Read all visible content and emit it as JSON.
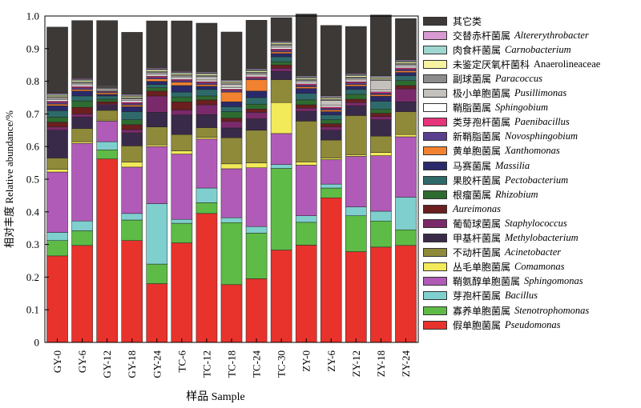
{
  "chart_data": {
    "type": "bar",
    "stacked": true,
    "xlabel": "样品 Sample",
    "ylabel": "相对丰度 Relative abundance/%",
    "ylim": [
      0,
      1.0
    ],
    "yticks": [
      "0",
      "0.1",
      "0.2",
      "0.3",
      "0.4",
      "0.5",
      "0.6",
      "0.7",
      "0.8",
      "0.9",
      "1.0"
    ],
    "categories": [
      "GY-0",
      "GY-6",
      "GY-12",
      "GY-18",
      "GY-24",
      "TC-6",
      "TC-12",
      "TC-18",
      "TC-24",
      "TC-30",
      "ZY-0",
      "ZY-6",
      "ZY-12",
      "ZY-18",
      "ZY-24"
    ],
    "legend_position": "right",
    "series": [
      {
        "name": "假单胞菌属",
        "latin": "Pseudomonas",
        "italic": true,
        "color": "#e8322c",
        "values": [
          0.265,
          0.297,
          0.562,
          0.312,
          0.18,
          0.305,
          0.395,
          0.177,
          0.195,
          0.283,
          0.298,
          0.443,
          0.278,
          0.292,
          0.297
        ]
      },
      {
        "name": "寡养单胞菌属",
        "latin": "Stenotrophomonas",
        "italic": true,
        "color": "#5dbb46",
        "values": [
          0.047,
          0.045,
          0.028,
          0.063,
          0.06,
          0.06,
          0.033,
          0.19,
          0.14,
          0.25,
          0.07,
          0.03,
          0.11,
          0.08,
          0.048
        ]
      },
      {
        "name": "芽孢杆菌属",
        "latin": "Bacillus",
        "italic": true,
        "color": "#7fcfcf",
        "values": [
          0.025,
          0.03,
          0.025,
          0.02,
          0.185,
          0.012,
          0.045,
          0.015,
          0.02,
          0.012,
          0.02,
          0.012,
          0.027,
          0.03,
          0.1
        ]
      },
      {
        "name": "鞘氨醇单胞菌属",
        "latin": "Sphingomonas",
        "italic": true,
        "color": "#b15bb8",
        "values": [
          0.185,
          0.238,
          0.063,
          0.142,
          0.175,
          0.2,
          0.15,
          0.15,
          0.18,
          0.095,
          0.155,
          0.075,
          0.155,
          0.17,
          0.185
        ]
      },
      {
        "name": "丛毛单胞菌属",
        "latin": "Comamonas",
        "italic": true,
        "color": "#f3ea5a",
        "values": [
          0.008,
          0.005,
          0.003,
          0.015,
          0.005,
          0.01,
          0.005,
          0.015,
          0.015,
          0.095,
          0.01,
          0.005,
          0.005,
          0.01,
          0.007
        ]
      },
      {
        "name": "不动杆菌属",
        "latin": "Acinetobacter",
        "italic": true,
        "color": "#8f8a3a",
        "values": [
          0.035,
          0.04,
          0.03,
          0.05,
          0.055,
          0.05,
          0.03,
          0.08,
          0.1,
          0.07,
          0.125,
          0.055,
          0.12,
          0.05,
          0.07
        ]
      },
      {
        "name": "甲基杆菌属",
        "latin": "Methylobacterium",
        "italic": true,
        "color": "#3a2a4a",
        "values": [
          0.085,
          0.035,
          0.015,
          0.04,
          0.045,
          0.06,
          0.04,
          0.03,
          0.035,
          0.025,
          0.03,
          0.03,
          0.03,
          0.05,
          0.03
        ]
      },
      {
        "name": "葡萄球菌属",
        "latin": "Staphylococcus",
        "italic": true,
        "color": "#7a2a6a",
        "values": [
          0.01,
          0.01,
          0.004,
          0.01,
          0.05,
          0.015,
          0.03,
          0.02,
          0.02,
          0.01,
          0.01,
          0.01,
          0.01,
          0.01,
          0.04
        ]
      },
      {
        "name": "",
        "latin": "Aureimonas",
        "italic": true,
        "color": "#6b1f1f",
        "values": [
          0.015,
          0.02,
          0.007,
          0.015,
          0.015,
          0.025,
          0.015,
          0.01,
          0.01,
          0.01,
          0.01,
          0.01,
          0.01,
          0.01,
          0.01
        ]
      },
      {
        "name": "根瘤菌属",
        "latin": "Rhizobium",
        "italic": true,
        "color": "#2e6b30",
        "values": [
          0.015,
          0.02,
          0.008,
          0.015,
          0.01,
          0.015,
          0.012,
          0.02,
          0.015,
          0.01,
          0.015,
          0.012,
          0.015,
          0.012,
          0.015
        ]
      },
      {
        "name": "果胶杆菌属",
        "latin": "Pectobacterium",
        "italic": true,
        "color": "#2e6a6a",
        "values": [
          0.02,
          0.015,
          0.01,
          0.025,
          0.01,
          0.015,
          0.02,
          0.015,
          0.02,
          0.015,
          0.02,
          0.015,
          0.015,
          0.025,
          0.015
        ]
      },
      {
        "name": "马赛菌属",
        "latin": "Massilia",
        "italic": true,
        "color": "#2a2a6a",
        "values": [
          0.015,
          0.015,
          0.005,
          0.015,
          0.01,
          0.02,
          0.01,
          0.015,
          0.02,
          0.01,
          0.015,
          0.01,
          0.01,
          0.015,
          0.01
        ]
      },
      {
        "name": "黄单胞菌属",
        "latin": "Xanthomonas",
        "italic": true,
        "color": "#f2822f",
        "values": [
          0.005,
          0.005,
          0.005,
          0.005,
          0.007,
          0.01,
          0.005,
          0.03,
          0.035,
          0.005,
          0.005,
          0.005,
          0.005,
          0.005,
          0.005
        ]
      },
      {
        "name": "新鞘脂菌属",
        "latin": "Novosphingobium",
        "italic": true,
        "color": "#5a3f8f",
        "values": [
          0.005,
          0.005,
          0.003,
          0.005,
          0.005,
          0.005,
          0.005,
          0.005,
          0.005,
          0.005,
          0.005,
          0.005,
          0.005,
          0.005,
          0.005
        ]
      },
      {
        "name": "类芽孢杆菌属",
        "latin": "Paenibacillus",
        "italic": true,
        "color": "#e6337a",
        "values": [
          0.004,
          0.004,
          0.002,
          0.004,
          0.004,
          0.004,
          0.004,
          0.004,
          0.004,
          0.004,
          0.004,
          0.004,
          0.004,
          0.004,
          0.004
        ]
      },
      {
        "name": "鞘脂菌属",
        "latin": "Sphingobium",
        "italic": true,
        "color": "#ffffff",
        "values": [
          0.005,
          0.005,
          0.003,
          0.005,
          0.005,
          0.005,
          0.005,
          0.005,
          0.005,
          0.005,
          0.005,
          0.005,
          0.005,
          0.005,
          0.005
        ]
      },
      {
        "name": "极小单胞菌属",
        "latin": "Pusillimonas",
        "italic": true,
        "color": "#c4c0bc",
        "values": [
          0.005,
          0.005,
          0.005,
          0.005,
          0.005,
          0.005,
          0.01,
          0.01,
          0.005,
          0.005,
          0.005,
          0.015,
          0.005,
          0.03,
          0.005
        ]
      },
      {
        "name": "副球菌属",
        "latin": "Paracoccus",
        "italic": true,
        "color": "#8c8c8c",
        "values": [
          0.004,
          0.004,
          0.002,
          0.004,
          0.004,
          0.004,
          0.004,
          0.004,
          0.004,
          0.004,
          0.004,
          0.004,
          0.004,
          0.004,
          0.004
        ]
      },
      {
        "name": "未鉴定厌氧杆菌科",
        "latin": "Anaerolineaceae",
        "italic": false,
        "color": "#f7f3a0",
        "values": [
          0.004,
          0.004,
          0.002,
          0.004,
          0.004,
          0.004,
          0.004,
          0.004,
          0.004,
          0.004,
          0.004,
          0.004,
          0.004,
          0.004,
          0.004
        ]
      },
      {
        "name": "肉食杆菌属",
        "latin": "Carnobacterium",
        "italic": true,
        "color": "#9fd6cf",
        "values": [
          0.003,
          0.003,
          0.002,
          0.003,
          0.003,
          0.003,
          0.003,
          0.003,
          0.003,
          0.003,
          0.003,
          0.003,
          0.003,
          0.003,
          0.003
        ]
      },
      {
        "name": "交替赤杆菌属",
        "latin": "Altererythrobacter",
        "italic": true,
        "color": "#d99ad1",
        "values": [
          0.003,
          0.003,
          0.002,
          0.003,
          0.003,
          0.003,
          0.003,
          0.003,
          0.003,
          0.003,
          0.003,
          0.003,
          0.003,
          0.003,
          0.003
        ]
      },
      {
        "name": "其它类",
        "latin": "",
        "italic": false,
        "color": "#3d3937",
        "values": [
          0.203,
          0.178,
          0.2,
          0.19,
          0.145,
          0.155,
          0.15,
          0.146,
          0.149,
          0.072,
          0.19,
          0.216,
          0.145,
          0.186,
          0.127
        ]
      }
    ]
  }
}
